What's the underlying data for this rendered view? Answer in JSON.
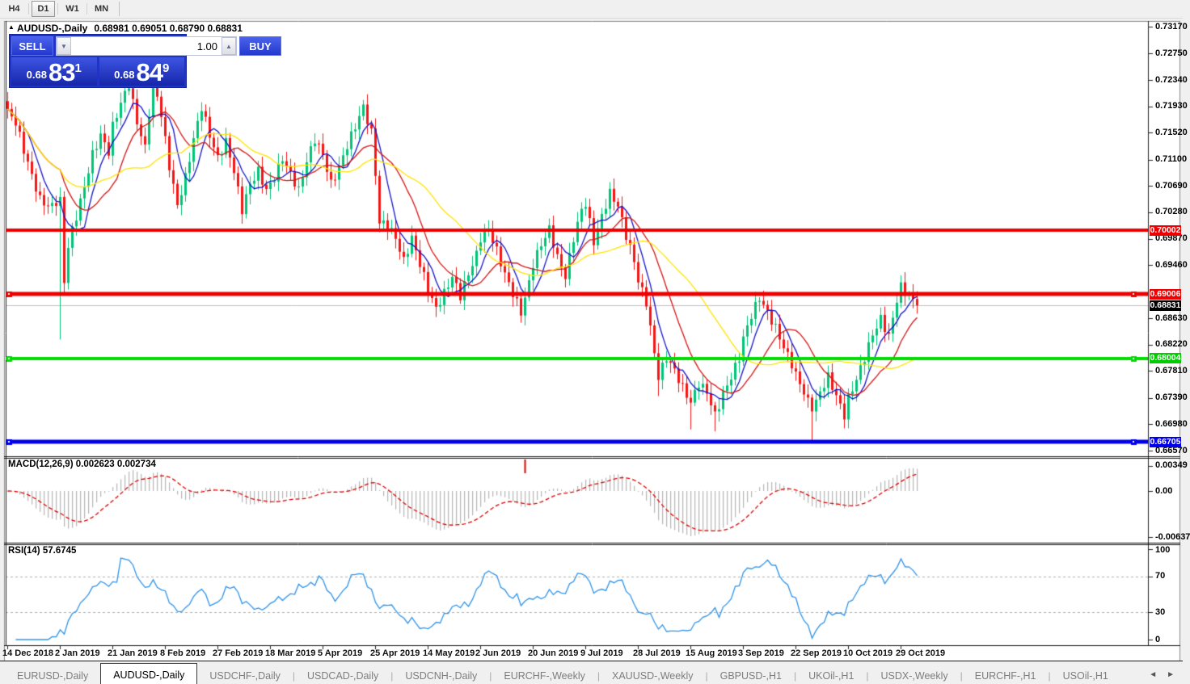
{
  "toolbar": {
    "timeframes": [
      {
        "label": "H4",
        "active": false
      },
      {
        "label": "D1",
        "active": true
      },
      {
        "label": "W1",
        "active": false
      },
      {
        "label": "MN",
        "active": false
      }
    ]
  },
  "header": {
    "symbol": "AUDUSD-,Daily",
    "ohlc": "0.68981 0.69051 0.68790 0.68831",
    "collapse_icon": "up-triangle"
  },
  "trade_panel": {
    "sell_label": "SELL",
    "buy_label": "BUY",
    "volume": "1.00",
    "sell_small": "0.68",
    "sell_big": "83",
    "sell_sup": "1",
    "buy_small": "0.68",
    "buy_big": "84",
    "buy_sup": "9"
  },
  "price_axis": {
    "ticks": [
      {
        "label": "0.73170",
        "value": 0.7317
      },
      {
        "label": "0.72750",
        "value": 0.7275
      },
      {
        "label": "0.72340",
        "value": 0.7234
      },
      {
        "label": "0.71930",
        "value": 0.7193
      },
      {
        "label": "0.71520",
        "value": 0.7152
      },
      {
        "label": "0.71100",
        "value": 0.711
      },
      {
        "label": "0.70690",
        "value": 0.7069
      },
      {
        "label": "0.70280",
        "value": 0.7028
      },
      {
        "label": "0.69870",
        "value": 0.6987
      },
      {
        "label": "0.69460",
        "value": 0.6946
      },
      {
        "label": "0.68630",
        "value": 0.6863
      },
      {
        "label": "0.68220",
        "value": 0.6822
      },
      {
        "label": "0.67810",
        "value": 0.6781
      },
      {
        "label": "0.67390",
        "value": 0.6739
      },
      {
        "label": "0.66980",
        "value": 0.6698
      },
      {
        "label": "0.66570",
        "value": 0.6657
      }
    ]
  },
  "hlines": [
    {
      "value": 0.70002,
      "label": "0.70002",
      "color": "#ee0000",
      "label_bg": "#ee0000",
      "thickness": 4,
      "anchors": false,
      "current": false
    },
    {
      "value": 0.69006,
      "label": "0.69006",
      "color": "#ee0000",
      "label_bg": "#ee0000",
      "thickness": 5,
      "anchors": true,
      "current": false
    },
    {
      "value": 0.68831,
      "label": "0.68831",
      "color": "#c0c0c0",
      "label_bg": "#000000",
      "thickness": 1,
      "anchors": false,
      "current": true
    },
    {
      "value": 0.68004,
      "label": "0.68004",
      "color": "#00dd00",
      "label_bg": "#00cc00",
      "thickness": 4,
      "anchors": true,
      "current": false
    },
    {
      "value": 0.66705,
      "label": "0.66705",
      "color": "#0000ee",
      "label_bg": "#0000ee",
      "thickness": 5,
      "anchors": true,
      "current": false
    }
  ],
  "indicators": {
    "macd": {
      "title": "MACD(12,26,9)",
      "values": "0.002623 0.002734",
      "axis": [
        {
          "label": "0.00349",
          "value": 0.00349
        },
        {
          "label": "0.00",
          "value": 0.0
        },
        {
          "label": "-0.00637",
          "value": -0.00637
        }
      ],
      "histogram_color": "#b6b6b6",
      "signal_color": "#e00000"
    },
    "rsi": {
      "title": "RSI(14)",
      "value": "57.6745",
      "axis": [
        {
          "label": "100",
          "value": 100
        },
        {
          "label": "70",
          "value": 70
        },
        {
          "label": "30",
          "value": 30
        },
        {
          "label": "0",
          "value": 0
        }
      ],
      "levels": [
        70,
        30
      ],
      "line_color": "#2e93ea"
    }
  },
  "x_axis": {
    "labels": [
      {
        "label": "14 Dec 2018",
        "index": 0
      },
      {
        "label": "2 Jan 2019",
        "index": 13
      },
      {
        "label": "21 Jan 2019",
        "index": 26
      },
      {
        "label": "8 Feb 2019",
        "index": 39
      },
      {
        "label": "27 Feb 2019",
        "index": 52
      },
      {
        "label": "18 Mar 2019",
        "index": 65
      },
      {
        "label": "5 Apr 2019",
        "index": 78
      },
      {
        "label": "25 Apr 2019",
        "index": 91
      },
      {
        "label": "14 May 2019",
        "index": 104
      },
      {
        "label": "2 Jun 2019",
        "index": 117
      },
      {
        "label": "20 Jun 2019",
        "index": 130
      },
      {
        "label": "9 Jul 2019",
        "index": 143
      },
      {
        "label": "28 Jul 2019",
        "index": 156
      },
      {
        "label": "15 Aug 2019",
        "index": 169
      },
      {
        "label": "3 Sep 2019",
        "index": 182
      },
      {
        "label": "22 Sep 2019",
        "index": 195
      },
      {
        "label": "10 Oct 2019",
        "index": 208
      },
      {
        "label": "29 Oct 2019",
        "index": 221
      }
    ]
  },
  "tabs": [
    {
      "label": "EURUSD-,Daily",
      "active": false
    },
    {
      "label": "AUDUSD-,Daily",
      "active": true
    },
    {
      "label": "USDCHF-,Daily",
      "active": false
    },
    {
      "label": "USDCAD-,Daily",
      "active": false
    },
    {
      "label": "USDCNH-,Daily",
      "active": false
    },
    {
      "label": "EURCHF-,Weekly",
      "active": false
    },
    {
      "label": "XAUUSD-,Weekly",
      "active": false
    },
    {
      "label": "GBPUSD-,H1",
      "active": false
    },
    {
      "label": "UKOil-,H1",
      "active": false
    },
    {
      "label": "USDX-,Weekly",
      "active": false
    },
    {
      "label": "EURCHF-,H1",
      "active": false
    },
    {
      "label": "USOil-,H1",
      "active": false
    }
  ],
  "chart_data": {
    "type": "candlestick",
    "symbol": "AUDUSD-",
    "timeframe": "Daily",
    "last_ohlc": {
      "open": "0.68981",
      "high": "0.69051",
      "low": "0.68790",
      "close": "0.68831"
    },
    "num_candles": 226,
    "visible_price_range": {
      "top": 0.7317,
      "bottom": 0.6657
    },
    "bull_color": "#00c478",
    "bear_color": "#f31616",
    "moving_averages": [
      {
        "name": "fast",
        "color": "#1414c8",
        "period": 6
      },
      {
        "name": "medium",
        "color": "#d41414",
        "period": 14
      },
      {
        "name": "slow",
        "color": "#ffe400",
        "period": 30
      }
    ],
    "anchors": [
      [
        0,
        0.7185
      ],
      [
        2,
        0.7168
      ],
      [
        4,
        0.7125
      ],
      [
        6,
        0.7085
      ],
      [
        8,
        0.7048
      ],
      [
        10,
        0.7038
      ],
      [
        12,
        0.7038
      ],
      [
        13,
        0.7052
      ],
      [
        14,
        0.6918
      ],
      [
        15,
        0.6975
      ],
      [
        16,
        0.7
      ],
      [
        17,
        0.7022
      ],
      [
        19,
        0.7068
      ],
      [
        21,
        0.7118
      ],
      [
        23,
        0.7148
      ],
      [
        25,
        0.7122
      ],
      [
        26,
        0.7162
      ],
      [
        28,
        0.7198
      ],
      [
        30,
        0.7228
      ],
      [
        32,
        0.7168
      ],
      [
        34,
        0.7128
      ],
      [
        36,
        0.7238
      ],
      [
        38,
        0.718
      ],
      [
        40,
        0.71
      ],
      [
        42,
        0.7038
      ],
      [
        44,
        0.7082
      ],
      [
        46,
        0.7142
      ],
      [
        48,
        0.7192
      ],
      [
        50,
        0.7148
      ],
      [
        52,
        0.7112
      ],
      [
        54,
        0.7138
      ],
      [
        56,
        0.7092
      ],
      [
        58,
        0.7032
      ],
      [
        60,
        0.7072
      ],
      [
        62,
        0.7092
      ],
      [
        64,
        0.7062
      ],
      [
        66,
        0.7082
      ],
      [
        68,
        0.7112
      ],
      [
        70,
        0.7088
      ],
      [
        72,
        0.7062
      ],
      [
        74,
        0.7108
      ],
      [
        76,
        0.7142
      ],
      [
        78,
        0.7118
      ],
      [
        80,
        0.7072
      ],
      [
        82,
        0.7098
      ],
      [
        84,
        0.7132
      ],
      [
        86,
        0.7162
      ],
      [
        88,
        0.7192
      ],
      [
        90,
        0.7152
      ],
      [
        91,
        0.7088
      ],
      [
        92,
        0.7012
      ],
      [
        94,
        0.7008
      ],
      [
        96,
        0.6988
      ],
      [
        98,
        0.6952
      ],
      [
        100,
        0.6988
      ],
      [
        102,
        0.6948
      ],
      [
        104,
        0.6908
      ],
      [
        106,
        0.6878
      ],
      [
        108,
        0.6902
      ],
      [
        110,
        0.6928
      ],
      [
        112,
        0.6898
      ],
      [
        114,
        0.6932
      ],
      [
        116,
        0.6962
      ],
      [
        117,
        0.6988
      ],
      [
        119,
        0.7002
      ],
      [
        121,
        0.6968
      ],
      [
        123,
        0.6932
      ],
      [
        125,
        0.6902
      ],
      [
        127,
        0.6872
      ],
      [
        129,
        0.6918
      ],
      [
        130,
        0.6948
      ],
      [
        132,
        0.6978
      ],
      [
        134,
        0.7002
      ],
      [
        136,
        0.6958
      ],
      [
        138,
        0.6928
      ],
      [
        140,
        0.6988
      ],
      [
        142,
        0.7032
      ],
      [
        143,
        0.7042
      ],
      [
        145,
        0.6982
      ],
      [
        147,
        0.7022
      ],
      [
        149,
        0.7058
      ],
      [
        151,
        0.7038
      ],
      [
        153,
        0.6992
      ],
      [
        155,
        0.6952
      ],
      [
        156,
        0.6922
      ],
      [
        158,
        0.6888
      ],
      [
        160,
        0.6808
      ],
      [
        161,
        0.6772
      ],
      [
        163,
        0.6802
      ],
      [
        165,
        0.6782
      ],
      [
        167,
        0.6755
      ],
      [
        169,
        0.6732
      ],
      [
        171,
        0.6762
      ],
      [
        173,
        0.6748
      ],
      [
        175,
        0.6712
      ],
      [
        177,
        0.6745
      ],
      [
        179,
        0.6772
      ],
      [
        181,
        0.6802
      ],
      [
        182,
        0.6832
      ],
      [
        184,
        0.6868
      ],
      [
        186,
        0.6895
      ],
      [
        188,
        0.6872
      ],
      [
        190,
        0.6848
      ],
      [
        192,
        0.6818
      ],
      [
        194,
        0.6792
      ],
      [
        195,
        0.6775
      ],
      [
        197,
        0.6748
      ],
      [
        199,
        0.6718
      ],
      [
        201,
        0.6748
      ],
      [
        203,
        0.6772
      ],
      [
        205,
        0.6742
      ],
      [
        207,
        0.6712
      ],
      [
        208,
        0.6738
      ],
      [
        210,
        0.6768
      ],
      [
        212,
        0.6802
      ],
      [
        214,
        0.6838
      ],
      [
        216,
        0.6862
      ],
      [
        218,
        0.6835
      ],
      [
        220,
        0.6892
      ],
      [
        221,
        0.6912
      ],
      [
        223,
        0.6898
      ],
      [
        225,
        0.68831
      ]
    ],
    "locked_indices": [
      12,
      13,
      14,
      199,
      225
    ],
    "wick_overrides": {
      "13": {
        "low": 0.683
      },
      "36": {
        "high": 0.7245
      },
      "106": {
        "low": 0.6865
      },
      "127": {
        "low": 0.6858
      },
      "149": {
        "high": 0.7075
      },
      "161": {
        "low": 0.6742
      },
      "169": {
        "low": 0.669
      },
      "175": {
        "low": 0.6687
      },
      "199": {
        "low": 0.667
      },
      "207": {
        "low": 0.6698
      },
      "221": {
        "high": 0.693
      },
      "225": {
        "high": 0.69051,
        "low": 0.6879
      }
    },
    "event_mark": {
      "x_index": 128,
      "color": "#e00000",
      "panel": "macd"
    }
  }
}
